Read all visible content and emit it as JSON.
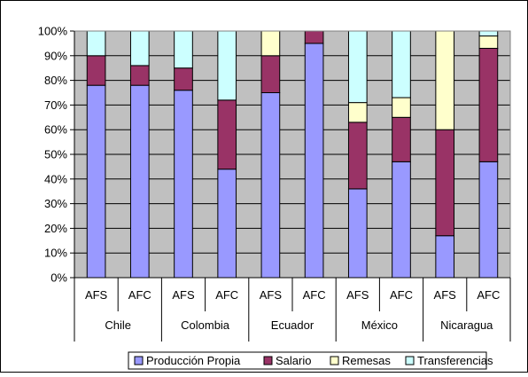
{
  "chart_data": {
    "type": "bar",
    "stacked": "percent",
    "title": "",
    "xlabel": "",
    "ylabel": "",
    "ylim": [
      0,
      100
    ],
    "yticks": [
      "0%",
      "10%",
      "20%",
      "30%",
      "40%",
      "50%",
      "60%",
      "70%",
      "80%",
      "90%",
      "100%"
    ],
    "grid": true,
    "legend_position": "bottom",
    "categories": [
      "AFS",
      "AFC",
      "AFS",
      "AFC",
      "AFS",
      "AFC",
      "AFS",
      "AFC",
      "AFS",
      "AFC"
    ],
    "groups": [
      {
        "label": "Chile",
        "categories": [
          "AFS",
          "AFC"
        ]
      },
      {
        "label": "Colombia",
        "categories": [
          "AFS",
          "AFC"
        ]
      },
      {
        "label": "Ecuador",
        "categories": [
          "AFS",
          "AFC"
        ]
      },
      {
        "label": "México",
        "categories": [
          "AFS",
          "AFC"
        ]
      },
      {
        "label": "Nicaragua",
        "categories": [
          "AFS",
          "AFC"
        ]
      }
    ],
    "series": [
      {
        "name": "Producción Propia",
        "color": "#9999FF",
        "values": [
          78,
          78,
          76,
          44,
          75,
          95,
          36,
          47,
          17,
          47
        ]
      },
      {
        "name": "Salario",
        "color": "#993366",
        "values": [
          12,
          8,
          9,
          28,
          15,
          5,
          27,
          18,
          43,
          46
        ]
      },
      {
        "name": "Remesas",
        "color": "#FFFFCC",
        "values": [
          0,
          0,
          0,
          0,
          10,
          0,
          8,
          8,
          40,
          5
        ]
      },
      {
        "name": "Transferencias",
        "color": "#CCFFFF",
        "values": [
          10,
          14,
          15,
          28,
          0,
          0,
          29,
          27,
          0,
          2
        ]
      }
    ],
    "plot_background": "#C0C0C0"
  }
}
